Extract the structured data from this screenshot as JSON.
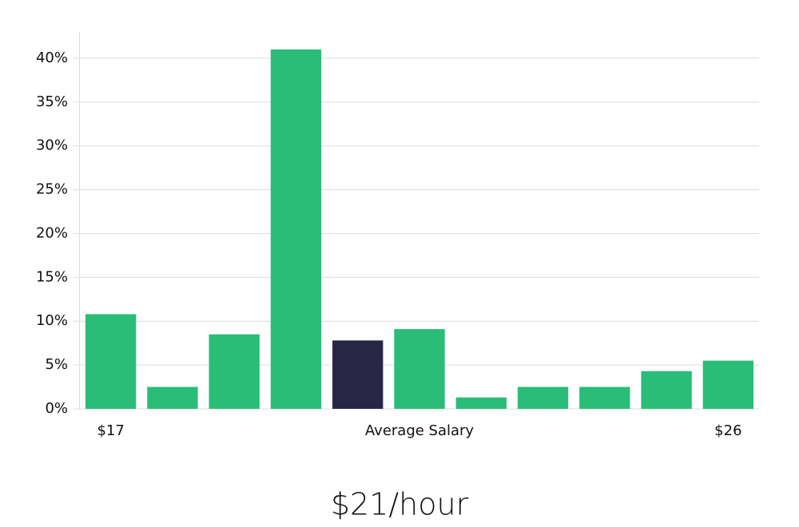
{
  "chart_data": {
    "type": "bar",
    "categories": [
      "$17",
      null,
      null,
      null,
      null,
      "Average Salary",
      null,
      null,
      null,
      null,
      "$26"
    ],
    "values": [
      10.8,
      2.5,
      8.5,
      41,
      7.8,
      9.1,
      1.3,
      2.5,
      2.5,
      4.3,
      5.5
    ],
    "colors": [
      "#2abd77",
      "#2abd77",
      "#2abd77",
      "#2abd77",
      "#272643",
      "#2abd77",
      "#2abd77",
      "#2abd77",
      "#2abd77",
      "#2abd77",
      "#2abd77"
    ],
    "ylim": [
      0,
      43
    ],
    "yticks": [
      {
        "value": 0,
        "label": "0%"
      },
      {
        "value": 5,
        "label": "5%"
      },
      {
        "value": 10,
        "label": "10%"
      },
      {
        "value": 15,
        "label": "15%"
      },
      {
        "value": 20,
        "label": "20%"
      },
      {
        "value": 25,
        "label": "25%"
      },
      {
        "value": 30,
        "label": "30%"
      },
      {
        "value": 35,
        "label": "35%"
      },
      {
        "value": 40,
        "label": "40%"
      }
    ],
    "grid": true,
    "annotation": "$21/hour"
  }
}
